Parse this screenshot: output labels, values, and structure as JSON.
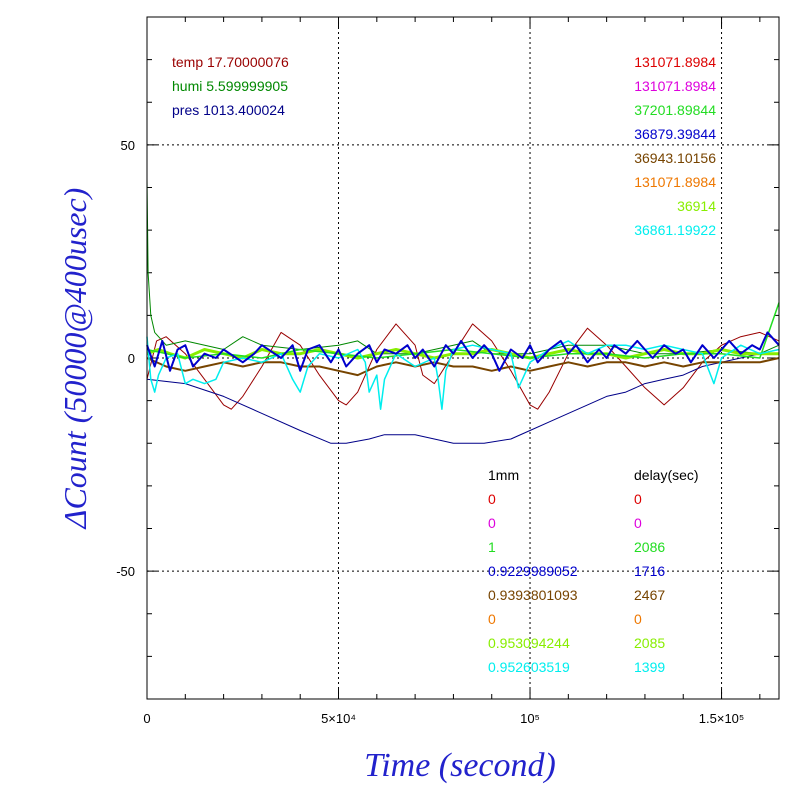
{
  "chart_data": {
    "type": "line",
    "xlabel": "Time (second)",
    "ylabel": "ΔCount (50000@400usec)",
    "xlim": [
      0,
      165000
    ],
    "ylim": [
      -80,
      80
    ],
    "x_ticks": [
      {
        "value": 0,
        "label": "0"
      },
      {
        "value": 50000,
        "label": "5×10⁴"
      },
      {
        "value": 100000,
        "label": "10⁵"
      },
      {
        "value": 150000,
        "label": "1.5×10⁵"
      }
    ],
    "y_ticks": [
      {
        "value": 50,
        "label": "50"
      },
      {
        "value": 0,
        "label": "0"
      },
      {
        "value": -50,
        "label": "-50"
      }
    ],
    "grid": true,
    "env": [
      {
        "label": "temp",
        "value": "17.70000076",
        "color": "#990000"
      },
      {
        "label": "humi",
        "value": "5.599999905",
        "color": "#008800"
      },
      {
        "label": "pres",
        "value": "1013.400024",
        "color": "#000088"
      }
    ],
    "channel_header": {
      "mm": "1mm",
      "delay": "delay(sec)"
    },
    "channels": [
      {
        "top": "131071.8984",
        "mm": "0",
        "delay": "0",
        "color": "#dd0000"
      },
      {
        "top": "131071.8984",
        "mm": "0",
        "delay": "0",
        "color": "#dd00dd"
      },
      {
        "top": "37201.89844",
        "mm": "1",
        "delay": "2086",
        "color": "#22dd22"
      },
      {
        "top": "36879.39844",
        "mm": "0.9229989052",
        "delay": "1716",
        "color": "#0000cc"
      },
      {
        "top": "36943.10156",
        "mm": "0.9393801093",
        "delay": "2467",
        "color": "#774400"
      },
      {
        "top": "131071.8984",
        "mm": "0",
        "delay": "0",
        "color": "#ee7700"
      },
      {
        "top": "36914",
        "mm": "0.953094244",
        "delay": "2085",
        "color": "#88ee00"
      },
      {
        "top": "36861.19922",
        "mm": "0.952603519",
        "delay": "1399",
        "color": "#00eeee"
      }
    ],
    "series": [
      {
        "key": "temp",
        "color": "#990000",
        "width": 1.0,
        "x": [
          0,
          2500,
          5000,
          10000,
          15000,
          20000,
          22000,
          25000,
          30000,
          35000,
          40000,
          45000,
          50000,
          52000,
          55000,
          60000,
          65000,
          70000,
          72000,
          75000,
          80000,
          85000,
          90000,
          95000,
          100000,
          102000,
          105000,
          110000,
          115000,
          120000,
          125000,
          130000,
          135000,
          140000,
          145000,
          150000,
          155000,
          160000,
          165000
        ],
        "y": [
          -5,
          4,
          5,
          1,
          -5,
          -11,
          -12,
          -9,
          -2,
          6,
          3,
          -4,
          -10,
          -11,
          -8,
          2,
          8,
          3,
          -4,
          -6,
          1,
          8,
          4,
          -3,
          -11,
          -12,
          -8,
          1,
          7,
          3,
          -2,
          -7,
          -11,
          -7,
          -1,
          3,
          5,
          6,
          4
        ]
      },
      {
        "key": "humi",
        "color": "#008800",
        "width": 1.0,
        "x": [
          0,
          300,
          1000,
          2000,
          5000,
          10000,
          20000,
          25000,
          30000,
          40000,
          50000,
          55000,
          60000,
          70000,
          80000,
          85000,
          90000,
          100000,
          110000,
          120000,
          130000,
          140000,
          150000,
          160000,
          165000
        ],
        "y": [
          42,
          20,
          10,
          6,
          3,
          4,
          2,
          5,
          3,
          2,
          3,
          4,
          1,
          1,
          3,
          4,
          1,
          1,
          3,
          3,
          1,
          1,
          2,
          1,
          3
        ]
      },
      {
        "key": "pres",
        "color": "#000088",
        "width": 1.0,
        "x": [
          0,
          10000,
          20000,
          30000,
          40000,
          48000,
          52000,
          58000,
          62000,
          66000,
          70000,
          75000,
          80000,
          88000,
          95000,
          100000,
          105000,
          110000,
          115000,
          120000,
          125000,
          130000,
          135000,
          140000,
          145000,
          150000,
          155000,
          160000,
          165000
        ],
        "y": [
          -5,
          -6,
          -9,
          -13,
          -17,
          -20,
          -20,
          -19,
          -18,
          -18,
          -18,
          -19,
          -20,
          -20,
          -19,
          -17,
          -15,
          -13,
          -11,
          -9,
          -8,
          -6,
          -5,
          -4,
          -2,
          -1,
          0,
          1,
          2
        ]
      },
      {
        "key": "ch4",
        "color": "#774400",
        "width": 2.0,
        "x": [
          0,
          5000,
          10000,
          15000,
          20000,
          25000,
          30000,
          35000,
          40000,
          45000,
          50000,
          55000,
          60000,
          65000,
          70000,
          75000,
          80000,
          85000,
          90000,
          95000,
          100000,
          105000,
          110000,
          115000,
          120000,
          125000,
          130000,
          135000,
          140000,
          145000,
          150000,
          155000,
          160000,
          165000
        ],
        "y": [
          0,
          -2,
          -3,
          -2,
          -1,
          -2,
          -1,
          -1,
          -2,
          -2,
          -3,
          -4,
          -2,
          -1,
          -2,
          -1,
          -2,
          -2,
          -3,
          -2,
          -3,
          -2,
          -1,
          -2,
          -1,
          -1,
          -2,
          -1,
          -2,
          -1,
          -1,
          -1,
          -1,
          0
        ]
      },
      {
        "key": "ch7",
        "color": "#88ee00",
        "width": 3.0,
        "x": [
          0,
          3000,
          6000,
          10000,
          15000,
          20000,
          25000,
          30000,
          35000,
          40000,
          45000,
          50000,
          55000,
          60000,
          65000,
          70000,
          75000,
          80000,
          85000,
          90000,
          95000,
          100000,
          105000,
          110000,
          115000,
          120000,
          125000,
          130000,
          135000,
          140000,
          145000,
          150000,
          155000,
          160000,
          165000
        ],
        "y": [
          1,
          2,
          1,
          0,
          2,
          1,
          0,
          2,
          1,
          1,
          2,
          1,
          0,
          1,
          2,
          1,
          0,
          1,
          1,
          2,
          1,
          0,
          1,
          2,
          1,
          1,
          0,
          1,
          2,
          1,
          1,
          2,
          1,
          1,
          1
        ]
      },
      {
        "key": "ch3",
        "color": "#22dd22",
        "width": 1.5,
        "x": [
          0,
          5000,
          10000,
          20000,
          30000,
          40000,
          50000,
          60000,
          70000,
          80000,
          90000,
          100000,
          110000,
          120000,
          130000,
          140000,
          150000,
          160000,
          165000
        ],
        "y": [
          2,
          1,
          0,
          1,
          0,
          2,
          1,
          0,
          1,
          2,
          1,
          0,
          1,
          1,
          0,
          1,
          1,
          0,
          13
        ]
      },
      {
        "key": "ch8",
        "color": "#00eeee",
        "width": 1.5,
        "x": [
          0,
          1000,
          2000,
          3000,
          5000,
          8000,
          10000,
          12000,
          15000,
          18000,
          20000,
          25000,
          30000,
          35000,
          38000,
          40000,
          42000,
          45000,
          50000,
          55000,
          57000,
          58000,
          60000,
          61000,
          62000,
          65000,
          70000,
          75000,
          76000,
          77000,
          78000,
          80000,
          85000,
          90000,
          95000,
          97000,
          98000,
          99000,
          100000,
          105000,
          110000,
          115000,
          120000,
          125000,
          130000,
          135000,
          140000,
          145000,
          148000,
          150000,
          155000,
          160000,
          165000
        ],
        "y": [
          5,
          -5,
          -8,
          -4,
          0,
          1,
          -6,
          -5,
          -6,
          -5,
          -1,
          0,
          -1,
          1,
          -5,
          -8,
          -2,
          1,
          0,
          2,
          -1,
          -8,
          -4,
          -12,
          -5,
          1,
          -2,
          0,
          -5,
          -12,
          -3,
          2,
          3,
          2,
          1,
          -7,
          -5,
          -3,
          -1,
          2,
          4,
          1,
          3,
          3,
          2,
          3,
          2,
          1,
          -6,
          0,
          3,
          1,
          2
        ]
      },
      {
        "key": "ch4b",
        "color": "#0000cc",
        "width": 2.0,
        "x": [
          0,
          2000,
          4000,
          6000,
          8000,
          10000,
          12000,
          15000,
          18000,
          20000,
          25000,
          28000,
          30000,
          35000,
          38000,
          40000,
          42000,
          45000,
          48000,
          50000,
          52000,
          55000,
          58000,
          60000,
          62000,
          65000,
          68000,
          70000,
          72000,
          75000,
          78000,
          80000,
          82000,
          85000,
          88000,
          90000,
          92000,
          95000,
          98000,
          100000,
          102000,
          105000,
          108000,
          110000,
          112000,
          115000,
          118000,
          120000,
          122000,
          125000,
          128000,
          130000,
          132000,
          135000,
          138000,
          140000,
          142000,
          145000,
          148000,
          150000,
          152000,
          155000,
          158000,
          160000,
          162000,
          165000
        ],
        "y": [
          3,
          -2,
          4,
          -3,
          2,
          3,
          -2,
          1,
          0,
          2,
          -1,
          1,
          3,
          0,
          3,
          -3,
          2,
          3,
          -1,
          2,
          -2,
          1,
          3,
          -1,
          2,
          1,
          3,
          0,
          2,
          -2,
          3,
          1,
          4,
          0,
          3,
          1,
          -3,
          2,
          0,
          3,
          -1,
          2,
          4,
          1,
          3,
          -1,
          2,
          0,
          3,
          1,
          4,
          2,
          0,
          3,
          1,
          2,
          -1,
          3,
          0,
          2,
          4,
          1,
          3,
          2,
          6,
          3
        ]
      }
    ]
  }
}
